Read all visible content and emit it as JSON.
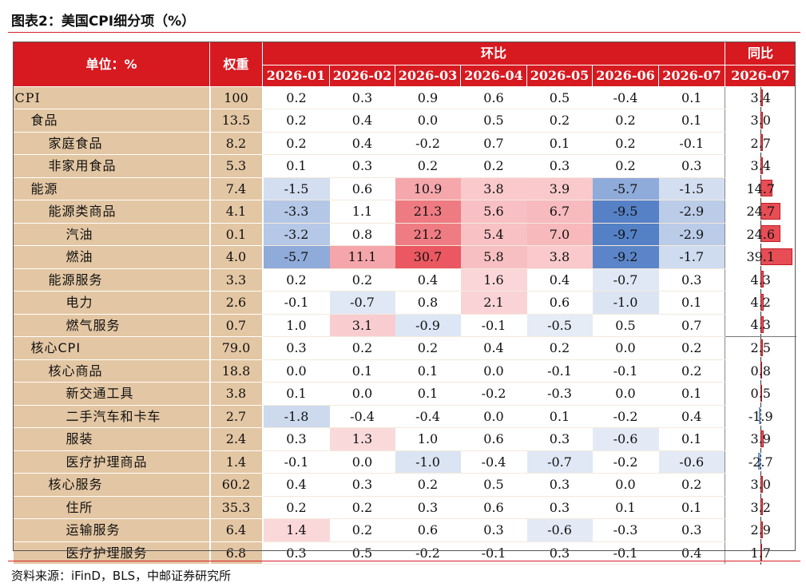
{
  "title": "图表2：美国CPI细分项（%）",
  "source": "资料来源：iFinD，BLS，中邮证券研究所",
  "header": {
    "unit_label": "单位：%",
    "weight_label": "权重",
    "mom_label": "环比",
    "yoy_label": "同比",
    "mom_months": [
      "2026-01",
      "2026-02",
      "2026-03",
      "2026-04",
      "2026-05",
      "2026-06",
      "2026-07"
    ],
    "yoy_month": "2026-07"
  },
  "colors": {
    "header_red": "#d71920",
    "label_tan": "#e3c6a3",
    "positive": "#e64d55",
    "negative": "#4a7cc4"
  },
  "rows": [
    {
      "name": "CPI",
      "level": 0,
      "weight": "100",
      "mom": [
        "0.2",
        "0.3",
        "0.9",
        "0.6",
        "0.5",
        "-0.4",
        "0.1"
      ],
      "yoy": "3.4"
    },
    {
      "name": "食品",
      "level": 1,
      "weight": "13.5",
      "mom": [
        "0.2",
        "0.4",
        "0.0",
        "0.5",
        "0.2",
        "0.2",
        "0.1"
      ],
      "yoy": "3.0"
    },
    {
      "name": "家庭食品",
      "level": 2,
      "weight": "8.2",
      "mom": [
        "0.2",
        "0.4",
        "-0.2",
        "0.7",
        "0.1",
        "0.2",
        "-0.1"
      ],
      "yoy": "2.7"
    },
    {
      "name": "非家用食品",
      "level": 2,
      "weight": "5.3",
      "mom": [
        "0.1",
        "0.3",
        "0.2",
        "0.2",
        "0.3",
        "0.2",
        "0.3"
      ],
      "yoy": "3.4"
    },
    {
      "name": "能源",
      "level": 1,
      "weight": "7.4",
      "mom": [
        "-1.5",
        "0.6",
        "10.9",
        "3.8",
        "3.9",
        "-5.7",
        "-1.5"
      ],
      "yoy": "14.7"
    },
    {
      "name": "能源类商品",
      "level": 2,
      "weight": "4.1",
      "mom": [
        "-3.3",
        "1.1",
        "21.3",
        "5.6",
        "6.7",
        "-9.5",
        "-2.9"
      ],
      "yoy": "24.7"
    },
    {
      "name": "汽油",
      "level": 3,
      "weight": "0.1",
      "mom": [
        "-3.2",
        "0.8",
        "21.2",
        "5.4",
        "7.0",
        "-9.7",
        "-2.9"
      ],
      "yoy": "24.6"
    },
    {
      "name": "燃油",
      "level": 3,
      "weight": "4.0",
      "mom": [
        "-5.7",
        "11.1",
        "30.7",
        "5.8",
        "3.8",
        "-9.2",
        "-1.7"
      ],
      "yoy": "39.1"
    },
    {
      "name": "能源服务",
      "level": 2,
      "weight": "3.3",
      "mom": [
        "0.2",
        "0.2",
        "0.4",
        "1.6",
        "0.4",
        "-0.7",
        "0.3"
      ],
      "yoy": "4.3"
    },
    {
      "name": "电力",
      "level": 3,
      "weight": "2.6",
      "mom": [
        "-0.1",
        "-0.7",
        "0.8",
        "2.1",
        "0.6",
        "-1.0",
        "0.1"
      ],
      "yoy": "4.2"
    },
    {
      "name": "燃气服务",
      "level": 3,
      "weight": "0.7",
      "mom": [
        "1.0",
        "3.1",
        "-0.9",
        "-0.1",
        "-0.5",
        "0.5",
        "0.7"
      ],
      "yoy": "4.3"
    },
    {
      "name": "核心CPI",
      "level": 1,
      "weight": "79.0",
      "mom": [
        "0.3",
        "0.2",
        "0.2",
        "0.4",
        "0.2",
        "0.0",
        "0.2"
      ],
      "yoy": "2.5"
    },
    {
      "name": "核心商品",
      "level": 2,
      "weight": "18.8",
      "mom": [
        "0.0",
        "0.1",
        "0.1",
        "0.0",
        "-0.1",
        "-0.1",
        "0.2"
      ],
      "yoy": "0.8"
    },
    {
      "name": "新交通工具",
      "level": 3,
      "weight": "3.8",
      "mom": [
        "0.1",
        "0.0",
        "0.1",
        "-0.2",
        "-0.3",
        "0.0",
        "0.1"
      ],
      "yoy": "0.5"
    },
    {
      "name": "二手汽车和卡车",
      "level": 3,
      "weight": "2.7",
      "mom": [
        "-1.8",
        "-0.4",
        "-0.4",
        "0.0",
        "0.1",
        "-0.2",
        "0.4"
      ],
      "yoy": "-1.9"
    },
    {
      "name": "服装",
      "level": 3,
      "weight": "2.4",
      "mom": [
        "0.3",
        "1.3",
        "1.0",
        "0.6",
        "0.3",
        "-0.6",
        "0.1"
      ],
      "yoy": "3.9"
    },
    {
      "name": "医疗护理商品",
      "level": 3,
      "weight": "1.4",
      "mom": [
        "-0.1",
        "0.0",
        "-1.0",
        "-0.4",
        "-0.7",
        "-0.2",
        "-0.6"
      ],
      "yoy": "-2.7"
    },
    {
      "name": "核心服务",
      "level": 2,
      "weight": "60.2",
      "mom": [
        "0.4",
        "0.3",
        "0.2",
        "0.5",
        "0.3",
        "0.0",
        "0.2"
      ],
      "yoy": "3.0"
    },
    {
      "name": "住所",
      "level": 3,
      "weight": "35.3",
      "mom": [
        "0.2",
        "0.2",
        "0.3",
        "0.6",
        "0.3",
        "0.1",
        "0.1"
      ],
      "yoy": "3.2"
    },
    {
      "name": "运输服务",
      "level": 3,
      "weight": "6.4",
      "mom": [
        "1.4",
        "0.2",
        "0.6",
        "0.3",
        "-0.6",
        "-0.3",
        "0.3"
      ],
      "yoy": "2.9"
    },
    {
      "name": "医疗护理服务",
      "level": 3,
      "weight": "6.8",
      "mom": [
        "0.3",
        "0.5",
        "-0.2",
        "-0.1",
        "0.3",
        "-0.1",
        "0.4"
      ],
      "yoy": "1.7"
    }
  ]
}
